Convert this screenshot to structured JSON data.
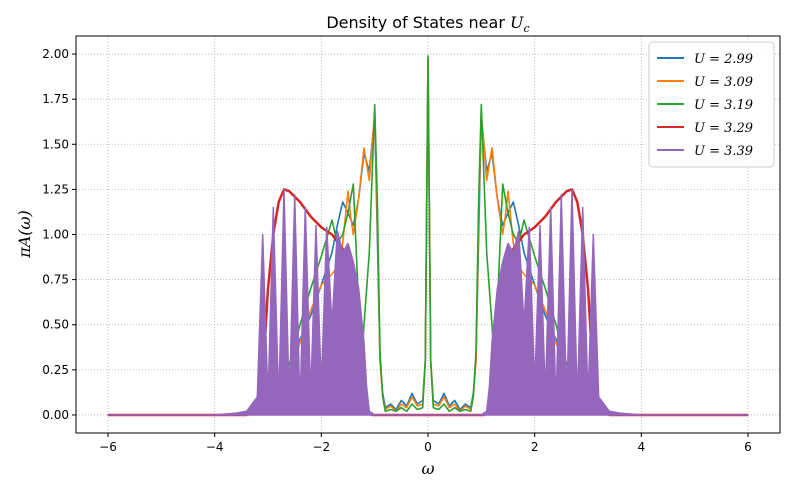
{
  "chart_data": {
    "type": "line",
    "title": "Density of States near U_c",
    "title_parts": {
      "main": "Density of States near ",
      "sym": "U",
      "sub": "c"
    },
    "xlabel": "ω",
    "ylabel": "πA(ω)",
    "xlim": [
      -6.6,
      6.6
    ],
    "ylim": [
      -0.1,
      2.1
    ],
    "xticks": [
      -6,
      -4,
      -2,
      0,
      2,
      4,
      6
    ],
    "xtick_labels": [
      "−6",
      "−4",
      "−2",
      "0",
      "2",
      "4",
      "6"
    ],
    "yticks": [
      0.0,
      0.25,
      0.5,
      0.75,
      1.0,
      1.25,
      1.5,
      1.75,
      2.0
    ],
    "ytick_labels": [
      "0.00",
      "0.25",
      "0.50",
      "0.75",
      "1.00",
      "1.25",
      "1.50",
      "1.75",
      "2.00"
    ],
    "grid": true,
    "legend_position": "top-right",
    "series": [
      {
        "name": "U = 2.99",
        "color": "#1f77b4",
        "x": [
          -6,
          -4,
          -3.4,
          -3.2,
          -3.0,
          -2.8,
          -2.6,
          -2.4,
          -2.2,
          -2.0,
          -1.8,
          -1.7,
          -1.6,
          -1.5,
          -1.4,
          -1.3,
          -1.2,
          -1.1,
          -1.0,
          -0.95,
          -0.9,
          -0.85,
          -0.8,
          -0.7,
          -0.6,
          -0.5,
          -0.4,
          -0.3,
          -0.2,
          -0.1,
          -0.05,
          0,
          0.05,
          0.1,
          0.2,
          0.3,
          0.4,
          0.5,
          0.6,
          0.7,
          0.8,
          0.85,
          0.9,
          0.95,
          1.0,
          1.1,
          1.2,
          1.3,
          1.4,
          1.5,
          1.6,
          1.7,
          1.8,
          2.0,
          2.2,
          2.4,
          2.6,
          2.8,
          3.0,
          3.2,
          3.4,
          4,
          6
        ],
        "y": [
          0.0,
          0.0,
          0.01,
          0.03,
          0.08,
          0.15,
          0.25,
          0.42,
          0.55,
          0.72,
          0.9,
          1.05,
          1.18,
          1.12,
          1.05,
          1.2,
          1.45,
          1.35,
          1.65,
          1.0,
          0.3,
          0.12,
          0.04,
          0.06,
          0.03,
          0.08,
          0.05,
          0.12,
          0.06,
          0.08,
          0.3,
          1.97,
          0.3,
          0.08,
          0.06,
          0.12,
          0.05,
          0.08,
          0.03,
          0.06,
          0.04,
          0.12,
          0.3,
          1.0,
          1.65,
          1.35,
          1.45,
          1.2,
          1.05,
          1.12,
          1.18,
          1.05,
          0.9,
          0.72,
          0.55,
          0.42,
          0.25,
          0.15,
          0.08,
          0.03,
          0.01,
          0.0,
          0.0
        ]
      },
      {
        "name": "U = 3.09",
        "color": "#ff7f0e",
        "x": [
          -6,
          -4,
          -3.4,
          -3.2,
          -3.0,
          -2.8,
          -2.6,
          -2.4,
          -2.2,
          -2.0,
          -1.8,
          -1.7,
          -1.6,
          -1.5,
          -1.45,
          -1.4,
          -1.3,
          -1.2,
          -1.1,
          -1.0,
          -0.95,
          -0.9,
          -0.85,
          -0.8,
          -0.7,
          -0.6,
          -0.5,
          -0.4,
          -0.3,
          -0.2,
          -0.1,
          -0.05,
          0,
          0.05,
          0.1,
          0.2,
          0.3,
          0.4,
          0.5,
          0.6,
          0.7,
          0.8,
          0.85,
          0.9,
          0.95,
          1.0,
          1.1,
          1.2,
          1.3,
          1.4,
          1.45,
          1.5,
          1.6,
          1.7,
          1.8,
          2.0,
          2.2,
          2.4,
          2.6,
          2.8,
          3.0,
          3.2,
          3.4,
          4,
          6
        ],
        "y": [
          0.0,
          0.0,
          0.01,
          0.03,
          0.07,
          0.14,
          0.24,
          0.4,
          0.58,
          0.72,
          0.78,
          0.82,
          0.95,
          1.24,
          1.1,
          1.0,
          1.2,
          1.48,
          1.3,
          1.68,
          1.1,
          0.3,
          0.1,
          0.03,
          0.05,
          0.02,
          0.06,
          0.04,
          0.1,
          0.05,
          0.06,
          0.3,
          1.98,
          0.3,
          0.06,
          0.05,
          0.1,
          0.04,
          0.06,
          0.02,
          0.05,
          0.03,
          0.1,
          0.3,
          1.1,
          1.68,
          1.3,
          1.48,
          1.2,
          1.0,
          1.1,
          1.24,
          0.95,
          0.82,
          0.78,
          0.72,
          0.58,
          0.4,
          0.24,
          0.14,
          0.07,
          0.03,
          0.01,
          0.0,
          0.0
        ]
      },
      {
        "name": "U = 3.19",
        "color": "#2ca02c",
        "x": [
          -6,
          -4,
          -3.4,
          -3.2,
          -3.0,
          -2.8,
          -2.6,
          -2.4,
          -2.2,
          -2.0,
          -1.9,
          -1.8,
          -1.7,
          -1.6,
          -1.5,
          -1.4,
          -1.3,
          -1.25,
          -1.2,
          -1.1,
          -1.0,
          -0.95,
          -0.9,
          -0.85,
          -0.8,
          -0.7,
          -0.6,
          -0.5,
          -0.4,
          -0.3,
          -0.2,
          -0.1,
          -0.05,
          0,
          0.05,
          0.1,
          0.2,
          0.3,
          0.4,
          0.5,
          0.6,
          0.7,
          0.8,
          0.85,
          0.9,
          0.95,
          1.0,
          1.1,
          1.2,
          1.25,
          1.3,
          1.4,
          1.5,
          1.6,
          1.7,
          1.8,
          1.9,
          2.0,
          2.2,
          2.4,
          2.6,
          2.8,
          3.0,
          3.2,
          3.4,
          4,
          6
        ],
        "y": [
          0.0,
          0.0,
          0.01,
          0.03,
          0.07,
          0.15,
          0.28,
          0.5,
          0.7,
          0.88,
          0.98,
          1.08,
          0.95,
          1.0,
          1.12,
          1.28,
          0.6,
          0.25,
          0.5,
          0.9,
          1.72,
          1.2,
          0.35,
          0.1,
          0.02,
          0.03,
          0.02,
          0.04,
          0.02,
          0.06,
          0.03,
          0.04,
          0.3,
          1.99,
          0.3,
          0.04,
          0.03,
          0.06,
          0.02,
          0.04,
          0.02,
          0.03,
          0.02,
          0.1,
          0.35,
          1.2,
          1.72,
          0.9,
          0.5,
          0.25,
          0.6,
          1.28,
          1.12,
          1.0,
          0.95,
          1.08,
          0.98,
          0.88,
          0.7,
          0.5,
          0.28,
          0.15,
          0.07,
          0.03,
          0.01,
          0.0,
          0.0
        ]
      },
      {
        "name": "U = 3.29",
        "color": "#d62728",
        "x": [
          -6,
          -4,
          -3.4,
          -3.2,
          -3.1,
          -3.0,
          -2.9,
          -2.8,
          -2.7,
          -2.6,
          -2.4,
          -2.2,
          -2.0,
          -1.8,
          -1.6,
          -1.4,
          -1.3,
          -1.2,
          -1.15,
          -1.1,
          -1.05,
          -1.0,
          -0.5,
          0,
          0.5,
          1.0,
          1.05,
          1.1,
          1.15,
          1.2,
          1.3,
          1.4,
          1.6,
          1.8,
          2.0,
          2.2,
          2.4,
          2.6,
          2.7,
          2.8,
          2.9,
          3.0,
          3.1,
          3.2,
          3.4,
          4,
          6
        ],
        "y": [
          0.0,
          0.0,
          0.0,
          0.02,
          0.2,
          0.7,
          1.0,
          1.18,
          1.25,
          1.24,
          1.18,
          1.1,
          1.04,
          1.0,
          0.92,
          0.72,
          0.5,
          0.2,
          0.05,
          0.01,
          0.0,
          0.0,
          0.0,
          0.0,
          0.0,
          0.0,
          0.0,
          0.01,
          0.05,
          0.2,
          0.5,
          0.72,
          0.92,
          1.0,
          1.04,
          1.1,
          1.18,
          1.24,
          1.25,
          1.18,
          1.0,
          0.7,
          0.2,
          0.02,
          0.0,
          0.0,
          0.0
        ]
      },
      {
        "name": "U = 3.39",
        "color": "#9467bd",
        "x": [
          -6,
          -4,
          -3.6,
          -3.4,
          -3.2,
          -3.1,
          -3.0,
          -2.9,
          -2.8,
          -2.7,
          -2.6,
          -2.5,
          -2.4,
          -2.3,
          -2.2,
          -2.1,
          -2.0,
          -1.9,
          -1.8,
          -1.7,
          -1.6,
          -1.5,
          -1.4,
          -1.3,
          -1.2,
          -1.15,
          -1.1,
          -1.0,
          -0.5,
          0,
          0.5,
          1.0,
          1.1,
          1.15,
          1.2,
          1.3,
          1.4,
          1.5,
          1.6,
          1.7,
          1.8,
          1.9,
          2.0,
          2.1,
          2.2,
          2.3,
          2.4,
          2.5,
          2.6,
          2.7,
          2.8,
          2.9,
          3.0,
          3.1,
          3.2,
          3.4,
          3.6,
          4,
          6
        ],
        "y": [
          0.0,
          0.0,
          0.01,
          0.02,
          0.1,
          1.0,
          0.08,
          1.15,
          0.06,
          1.25,
          0.05,
          1.22,
          0.04,
          1.15,
          0.1,
          1.05,
          0.15,
          1.04,
          0.5,
          1.02,
          0.9,
          0.95,
          0.85,
          0.7,
          0.4,
          0.15,
          0.02,
          0.0,
          0.0,
          0.0,
          0.0,
          0.0,
          0.02,
          0.15,
          0.4,
          0.7,
          0.85,
          0.95,
          0.9,
          1.02,
          0.5,
          1.04,
          0.15,
          1.05,
          0.1,
          1.15,
          0.04,
          1.22,
          0.05,
          1.25,
          0.06,
          1.15,
          0.08,
          1.0,
          0.1,
          0.02,
          0.01,
          0.0,
          0.0
        ]
      }
    ]
  }
}
